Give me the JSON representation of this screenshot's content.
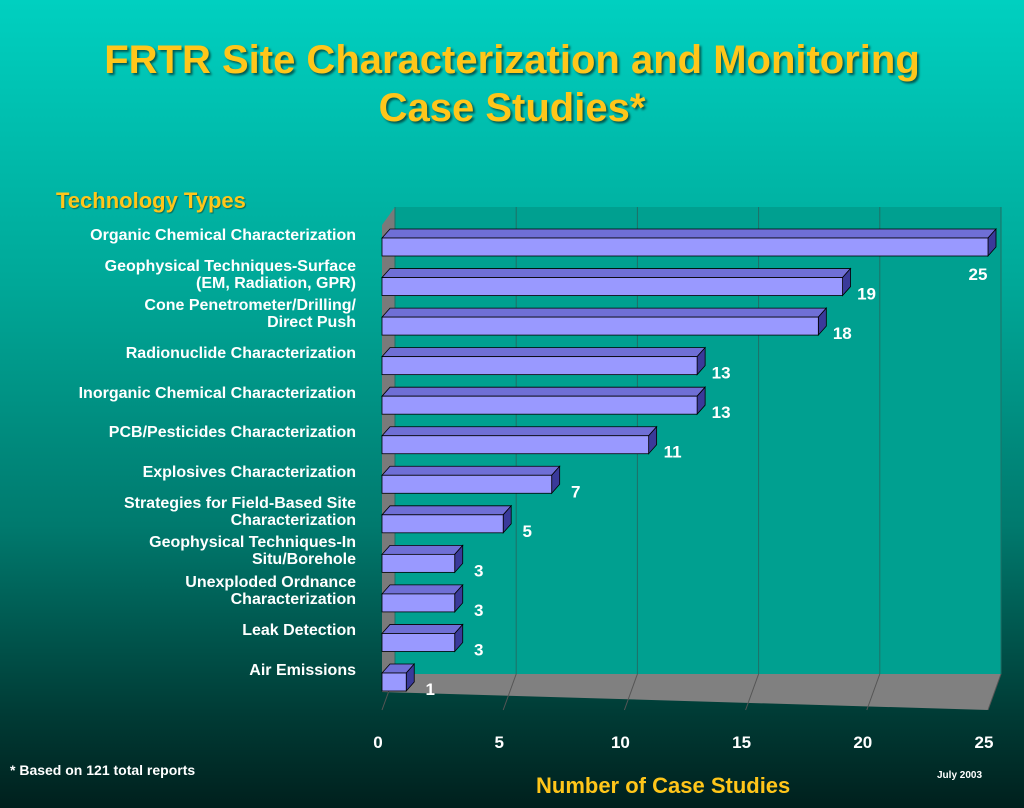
{
  "title": {
    "line1": "FRTR Site Characterization and Monitoring",
    "line2": "Case Studies*"
  },
  "footnote": "* Based on 121 total reports",
  "date": "July 2003",
  "chart_data": {
    "type": "bar",
    "orientation": "horizontal",
    "title": "FRTR Site Characterization and Monitoring Case Studies*",
    "ylabel": "Technology Types",
    "xlabel": "Number of Case Studies",
    "xlim": [
      0,
      25
    ],
    "xticks": [
      "0",
      "5",
      "10",
      "15",
      "20",
      "25"
    ],
    "grid": true,
    "categories": [
      [
        "Organic Chemical Characterization"
      ],
      [
        "Geophysical Techniques-Surface",
        "(EM, Radiation, GPR)"
      ],
      [
        "Cone Penetrometer/Drilling/",
        "Direct Push"
      ],
      [
        "Radionuclide Characterization"
      ],
      [
        "Inorganic Chemical Characterization"
      ],
      [
        "PCB/Pesticides Characterization"
      ],
      [
        "Explosives Characterization"
      ],
      [
        "Strategies for Field-Based Site",
        "Characterization"
      ],
      [
        "Geophysical Techniques-In",
        "Situ/Borehole"
      ],
      [
        "Unexploded Ordnance",
        "Characterization"
      ],
      [
        "Leak Detection"
      ],
      [
        "Air Emissions"
      ]
    ],
    "values": [
      25,
      19,
      18,
      13,
      13,
      11,
      7,
      5,
      3,
      3,
      3,
      1
    ],
    "value_labels": [
      "25",
      "19",
      "18",
      "13",
      "13",
      "11",
      "7",
      "5",
      "3",
      "3",
      "3",
      "1"
    ],
    "colors": {
      "bar_front": "#9999ff",
      "bar_top": "#6f6fd6",
      "bar_side": "#3a3a9a",
      "back_wall": "#00a090",
      "floor": "#808080",
      "left_wall": "#7a7a7a",
      "gridline": "#1f6f66"
    }
  }
}
